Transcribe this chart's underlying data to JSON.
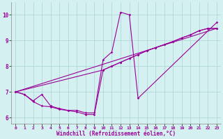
{
  "xlabel": "Windchill (Refroidissement éolien,°C)",
  "bg_color": "#d4f0f0",
  "grid_color": "#b0d8d8",
  "line_color": "#990099",
  "marker": "D",
  "markersize": 1.8,
  "linewidth": 0.8,
  "xlim": [
    -0.5,
    23.5
  ],
  "ylim": [
    5.75,
    10.5
  ],
  "yticks": [
    6,
    7,
    8,
    9,
    10
  ],
  "xticks": [
    0,
    1,
    2,
    3,
    4,
    5,
    6,
    7,
    8,
    9,
    10,
    11,
    12,
    13,
    14,
    15,
    16,
    17,
    18,
    19,
    20,
    21,
    22,
    23
  ],
  "line1_x": [
    0,
    1,
    2,
    3,
    4,
    5,
    6,
    7,
    8,
    9,
    10,
    11,
    12,
    13,
    14,
    23
  ],
  "line1_y": [
    7.0,
    6.9,
    6.65,
    6.9,
    6.45,
    6.35,
    6.28,
    6.28,
    6.18,
    6.18,
    8.25,
    8.55,
    10.1,
    10.0,
    6.75,
    9.7
  ],
  "line2_x": [
    0,
    10,
    11,
    12,
    13,
    14,
    15,
    16,
    17,
    18,
    19,
    20,
    21,
    22,
    23
  ],
  "line2_y": [
    7.0,
    7.85,
    8.0,
    8.15,
    8.3,
    8.45,
    8.6,
    8.72,
    8.84,
    8.96,
    9.1,
    9.22,
    9.38,
    9.47,
    9.47
  ],
  "line3_x": [
    0,
    1,
    2,
    3,
    4,
    5,
    6,
    7,
    8,
    9,
    10,
    11,
    12,
    13,
    14,
    15,
    16,
    17,
    18,
    19,
    20,
    21,
    22,
    23
  ],
  "line3_y": [
    7.0,
    6.9,
    6.62,
    6.45,
    6.42,
    6.32,
    6.27,
    6.22,
    6.12,
    6.12,
    7.85,
    8.0,
    8.15,
    8.3,
    8.45,
    8.6,
    8.72,
    8.84,
    8.96,
    9.1,
    9.22,
    9.38,
    9.47,
    9.47
  ],
  "line4_x": [
    0,
    23
  ],
  "line4_y": [
    7.0,
    9.47
  ]
}
